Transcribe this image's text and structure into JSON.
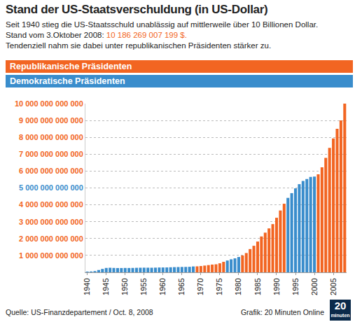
{
  "chart_data": {
    "type": "bar",
    "title": "Stand der US-Staatsverschuldung (in US-Dollar)",
    "subtitle": [
      "Seit 1940 stieg die US-Staatsschuld unablässig auf mittlerweile über 10 Billionen Dollar.",
      {
        "text": "Stand vom 3.Oktober 2008:",
        "value": 10186269007199,
        "label": "10 186 269 007 199 $."
      },
      "Tendenziell nahm sie dabei unter republikanischen Präsidenten stärker zu."
    ],
    "source": "Quelle: US-Finanzdepartement / Oct. 8, 2008",
    "credit": "Grafik: 20 Minuten Online",
    "logo": [
      "20",
      "minuten"
    ],
    "x": [
      1940,
      1941,
      1942,
      1943,
      1944,
      1945,
      1946,
      1947,
      1948,
      1949,
      1950,
      1951,
      1952,
      1953,
      1954,
      1955,
      1956,
      1957,
      1958,
      1959,
      1960,
      1961,
      1962,
      1963,
      1964,
      1965,
      1966,
      1967,
      1968,
      1969,
      1970,
      1971,
      1972,
      1973,
      1974,
      1975,
      1976,
      1977,
      1978,
      1979,
      1980,
      1981,
      1982,
      1983,
      1984,
      1985,
      1986,
      1987,
      1988,
      1989,
      1990,
      1991,
      1992,
      1993,
      1994,
      1995,
      1996,
      1997,
      1998,
      1999,
      2000,
      2001,
      2002,
      2003,
      2004,
      2005,
      2006,
      2007,
      2008
    ],
    "series": [
      {
        "name": "Republikanische Präsidenten",
        "color": "#f26522",
        "values": [
          null,
          null,
          null,
          null,
          null,
          null,
          null,
          null,
          null,
          null,
          null,
          null,
          null,
          null,
          null,
          null,
          null,
          null,
          null,
          null,
          null,
          null,
          null,
          null,
          null,
          null,
          null,
          null,
          null,
          353700000000.0,
          370900000000.0,
          398100000000.0,
          427300000000.0,
          458100000000.0,
          475100000000.0,
          533200000000.0,
          620400000000.0,
          null,
          null,
          null,
          null,
          997900000000.0,
          1142000000000.0,
          1377200000000.0,
          1572300000000.0,
          1823100000000.0,
          2125300000000.0,
          2350300000000.0,
          2602300000000.0,
          2857400000000.0,
          3233300000000.0,
          3665300000000.0,
          4064600000000.0,
          null,
          null,
          null,
          null,
          null,
          null,
          null,
          null,
          5807500000000.0,
          6228200000000.0,
          6783200000000.0,
          7379100000000.0,
          7932700000000.0,
          8507000000000.0,
          9007700000000.0,
          10000000000000.0
        ]
      },
      {
        "name": "Demokratische Präsidenten",
        "color": "#3a8dcc",
        "values": [
          43000000000.0,
          49000000000.0,
          72400000000.0,
          136700000000.0,
          201000000000.0,
          258700000000.0,
          269400000000.0,
          258300000000.0,
          252300000000.0,
          252800000000.0,
          257400000000.0,
          255200000000.0,
          259100000000.0,
          266100000000.0,
          271300000000.0,
          274400000000.0,
          272800000000.0,
          270500000000.0,
          276300000000.0,
          284700000000.0,
          286300000000.0,
          289000000000.0,
          298200000000.0,
          305900000000.0,
          311700000000.0,
          317300000000.0,
          319900000000.0,
          326200000000.0,
          347600000000.0,
          null,
          null,
          null,
          null,
          null,
          null,
          null,
          null,
          698800000000.0,
          771500000000.0,
          826500000000.0,
          907700000000.0,
          null,
          null,
          null,
          null,
          null,
          null,
          null,
          null,
          null,
          null,
          null,
          null,
          4411500000000.0,
          4692700000000.0,
          4974000000000.0,
          5224800000000.0,
          5413100000000.0,
          5526200000000.0,
          5656300000000.0,
          5674200000000.0,
          null,
          null,
          null,
          null,
          null,
          null,
          null,
          null
        ]
      }
    ],
    "stacked": false,
    "xlim": [
      1939.5,
      2008.5
    ],
    "xticks": [
      1940,
      1945,
      1950,
      1955,
      1960,
      1965,
      1970,
      1975,
      1980,
      1985,
      1990,
      1995,
      2000,
      2005
    ],
    "ylim": [
      0,
      10000000000000
    ],
    "yticks": [
      {
        "value": 1000000000000,
        "label": "1 000 000 000 000"
      },
      {
        "value": 2000000000000,
        "label": "2 000 000 000 000"
      },
      {
        "value": 3000000000000,
        "label": "3 000 000 000 000"
      },
      {
        "value": 4000000000000,
        "label": "4 000 000 000 000"
      },
      {
        "value": 5000000000000,
        "label": "5 000 000 000 000"
      },
      {
        "value": 6000000000000,
        "label": "6 000 000 000 000"
      },
      {
        "value": 7000000000000,
        "label": "7 000 000 000 000"
      },
      {
        "value": 8000000000000,
        "label": "8 000 000 000 000"
      },
      {
        "value": 9000000000000,
        "label": "9 000 000 000 000"
      },
      {
        "value": 10000000000000,
        "label": "10 000 000 000 000"
      }
    ],
    "grid": true
  }
}
